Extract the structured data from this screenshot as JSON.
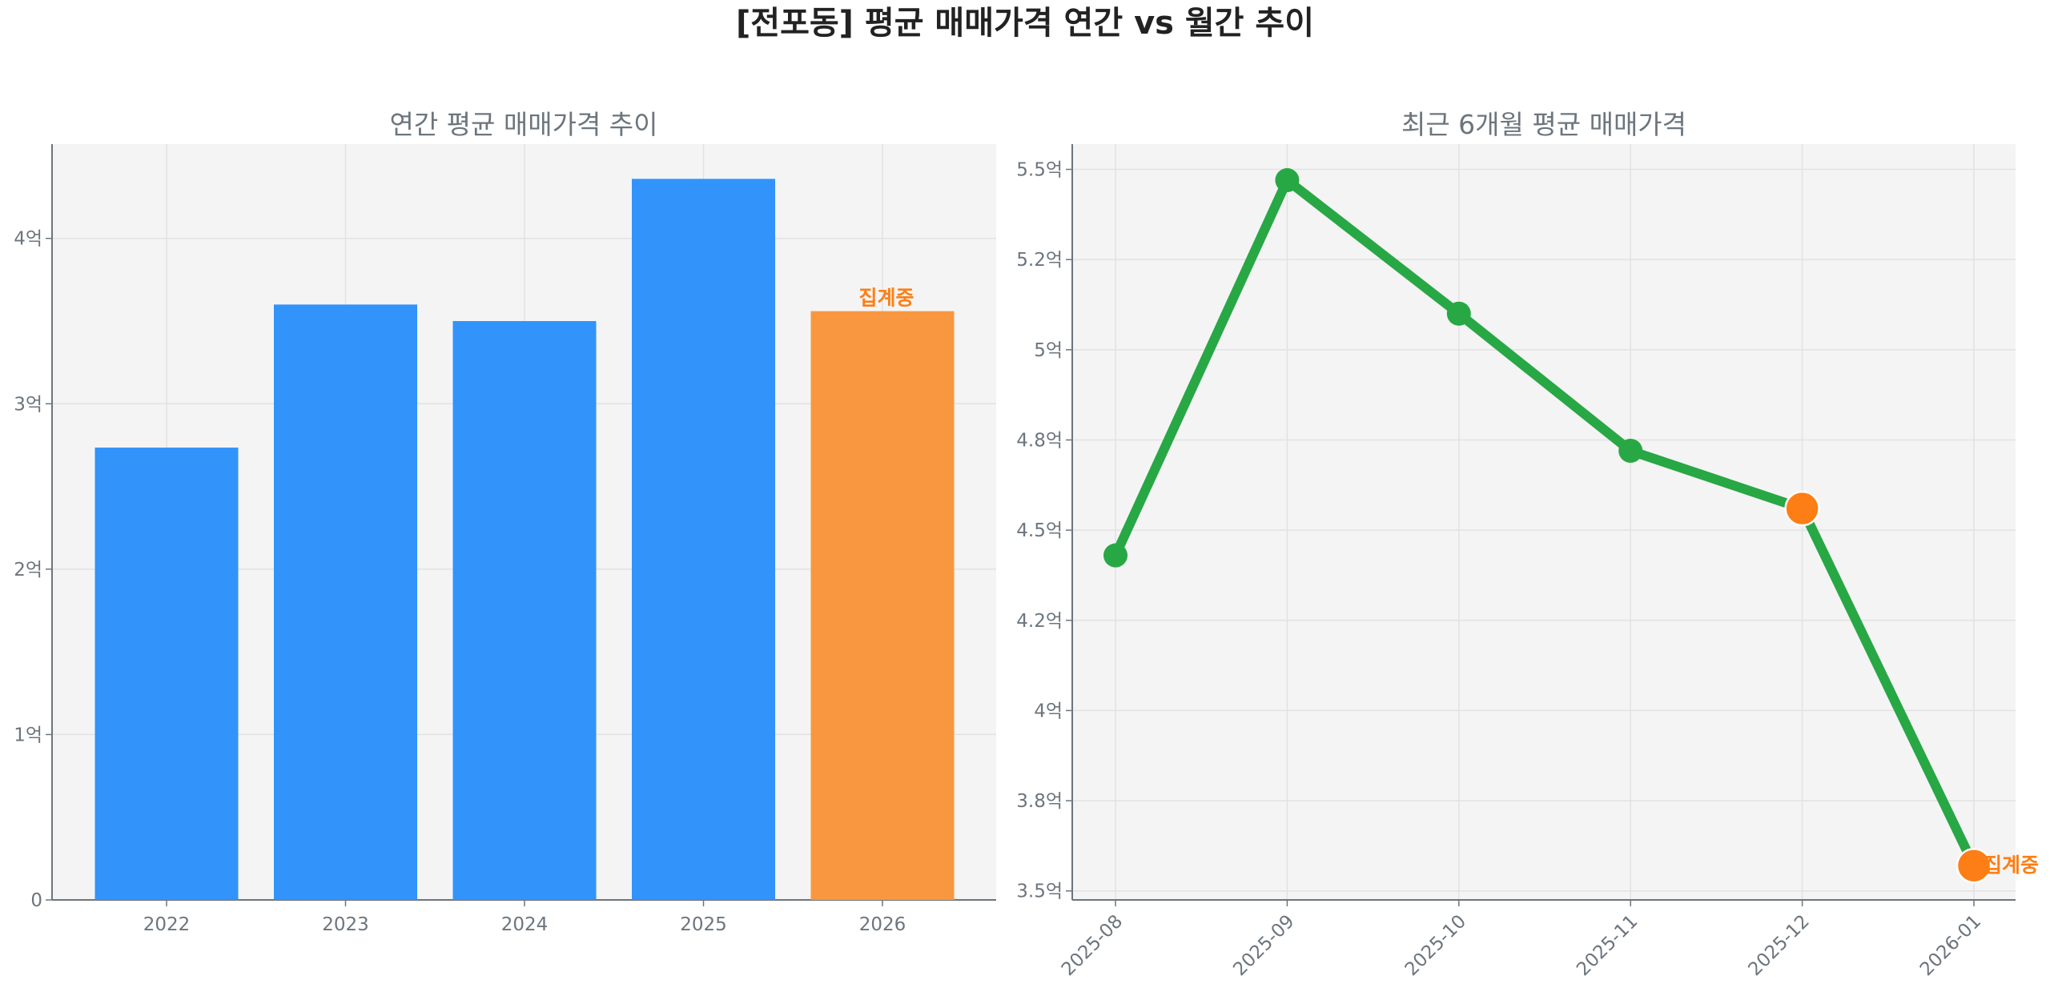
{
  "title": "[전포동] 평균 매매가격 연간 vs 월간 추이",
  "colors": {
    "bar": "#3293fa",
    "bar_pending": "#f99740",
    "line": "#28a745",
    "pending": "#fd7e14",
    "text": "#6c757d",
    "plot_bg": "#f4f4f4"
  },
  "chart_data": [
    {
      "type": "bar",
      "title": "연간 평균 매매가격 추이",
      "xlabel": "",
      "ylabel": "",
      "categories": [
        "2022",
        "2023",
        "2024",
        "2025",
        "2026"
      ],
      "values": [
        2.735,
        3.6,
        3.5,
        4.36,
        3.56
      ],
      "unit": "억",
      "pending_index": 4,
      "pending_label": "집계중",
      "ylim": [
        0,
        4.57
      ],
      "yticks": [
        0,
        1,
        2,
        3,
        4
      ],
      "ytick_labels": [
        "0",
        "1억",
        "2억",
        "3억",
        "4억"
      ],
      "grid": true
    },
    {
      "type": "line",
      "title": "최근 6개월 평균 매매가격",
      "xlabel": "",
      "ylabel": "",
      "categories": [
        "2025-08",
        "2025-09",
        "2025-10",
        "2025-11",
        "2025-12",
        "2026-01"
      ],
      "values": [
        4.43,
        5.47,
        5.1,
        4.72,
        4.56,
        3.57
      ],
      "unit": "억",
      "pending_indices": [
        4,
        5
      ],
      "pending_label": "집계중",
      "ylim": [
        3.475,
        5.57
      ],
      "yticks": [
        3.5,
        3.75,
        4.0,
        4.25,
        4.5,
        4.75,
        5.0,
        5.25,
        5.5
      ],
      "ytick_labels": [
        "3.5억",
        "3.8억",
        "4억",
        "4.2억",
        "4.5억",
        "4.8억",
        "5억",
        "5.2억",
        "5.5억"
      ],
      "grid": true
    }
  ]
}
